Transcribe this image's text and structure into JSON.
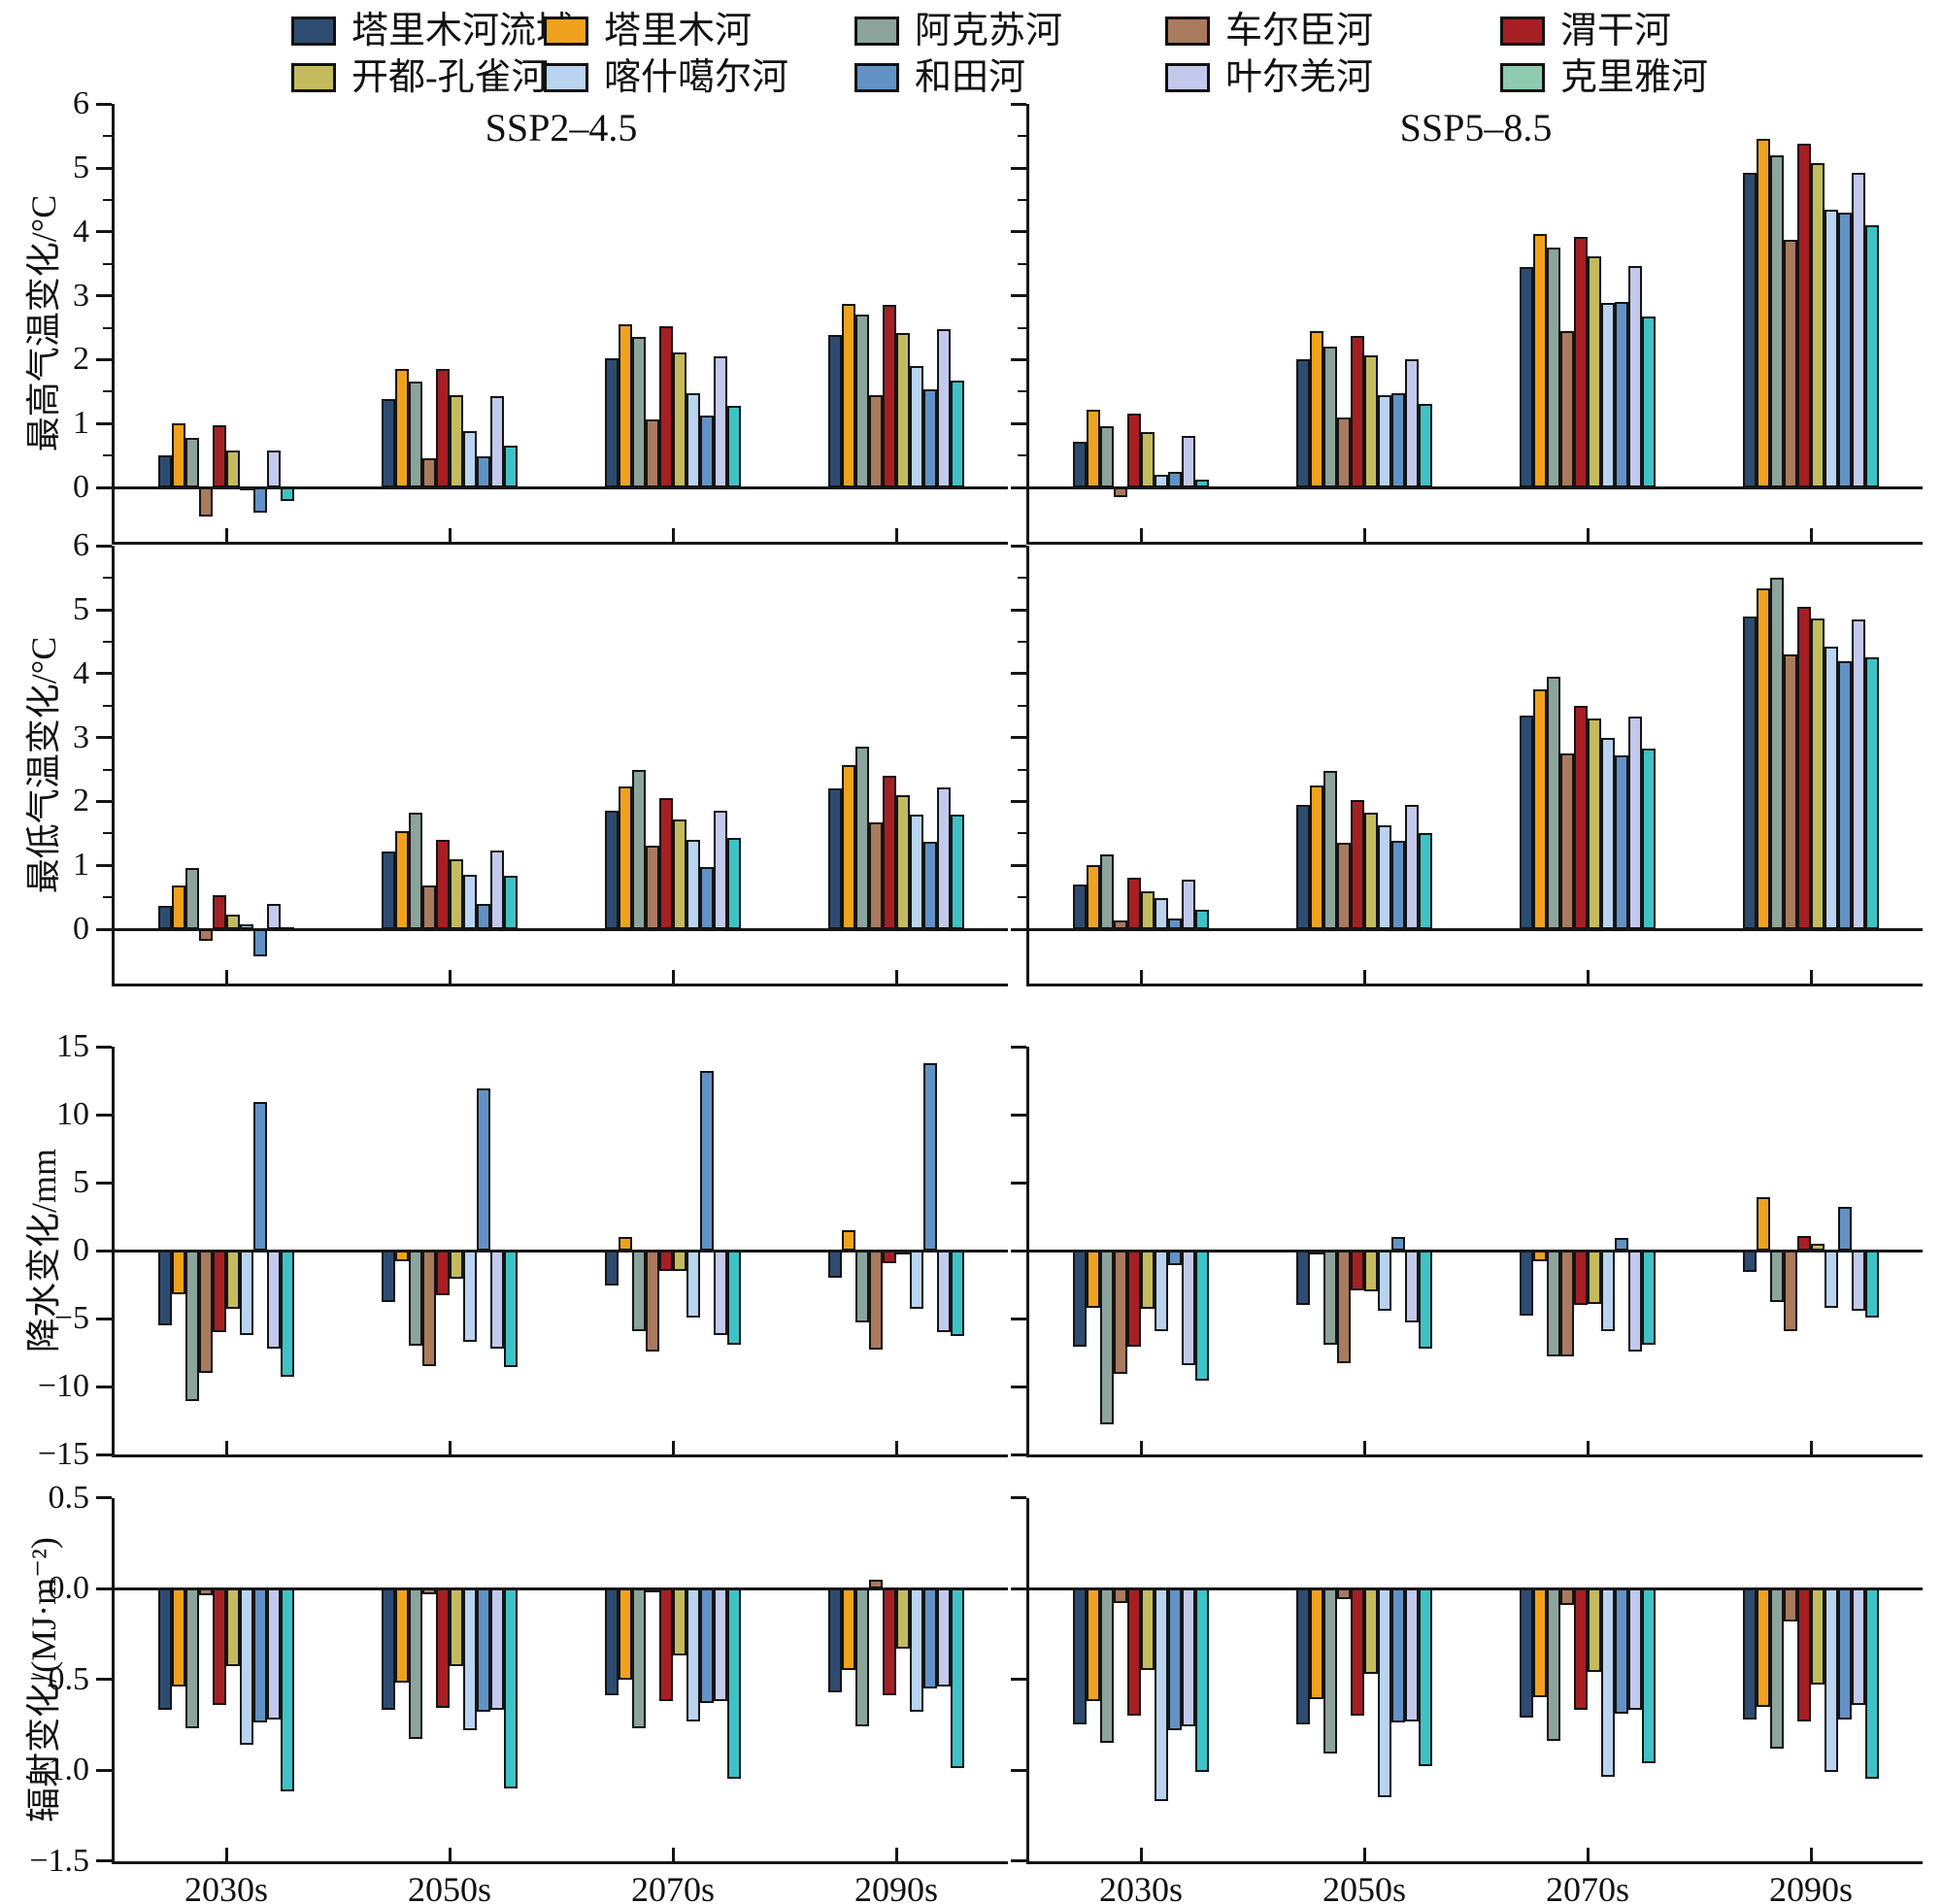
{
  "legend": {
    "items": [
      {
        "label": "塔里木河流域",
        "color": "#2e4c71"
      },
      {
        "label": "塔里木河",
        "color": "#f0a21e"
      },
      {
        "label": "阿克苏河",
        "color": "#8ca49b"
      },
      {
        "label": "车尔臣河",
        "color": "#a97a5e"
      },
      {
        "label": "渭干河",
        "color": "#a61f24"
      },
      {
        "label": "开都-孔雀河",
        "color": "#c4bb5f"
      },
      {
        "label": "喀什噶尔河",
        "color": "#b8d4f0"
      },
      {
        "label": "和田河",
        "color": "#6292c5"
      },
      {
        "label": "叶尔羌河",
        "color": "#c3c9ec"
      },
      {
        "label": "克里雅河",
        "color": "#3ec2c6",
        "legend_color": "#8fcbb1"
      }
    ]
  },
  "columns": [
    {
      "title": "SSP2–4.5"
    },
    {
      "title": "SSP5–8.5"
    }
  ],
  "categories": [
    "2030s",
    "2050s",
    "2070s",
    "2090s"
  ],
  "chart_data": [
    {
      "type": "bar",
      "ylabel": "最高气温变化/°C",
      "ylim": [
        -0.9,
        6
      ],
      "yticks": [
        [
          "6",
          6
        ],
        [
          "5",
          5
        ],
        [
          "4",
          4
        ],
        [
          "3",
          3
        ],
        [
          "2",
          2
        ],
        [
          "1",
          1
        ],
        [
          "0",
          0
        ]
      ],
      "minor_tick_values": [
        0.5,
        1.5,
        2.5,
        3.5,
        4.5,
        5.5
      ],
      "values": [
        [
          [
            0.5,
            1.38,
            2.02,
            2.38
          ],
          [
            1.0,
            1.85,
            2.55,
            2.87
          ],
          [
            0.78,
            1.65,
            2.35,
            2.7
          ],
          [
            -0.45,
            0.45,
            1.07,
            1.45
          ],
          [
            0.97,
            1.85,
            2.52,
            2.85
          ],
          [
            0.58,
            1.45,
            2.12,
            2.42
          ],
          [
            0.02,
            0.88,
            1.48,
            1.9
          ],
          [
            -0.4,
            0.48,
            1.13,
            1.53
          ],
          [
            0.57,
            1.43,
            2.05,
            2.47
          ],
          [
            -0.22,
            0.65,
            1.28,
            1.67
          ]
        ],
        [
          [
            0.72,
            2.0,
            3.45,
            4.92
          ],
          [
            1.22,
            2.45,
            3.97,
            5.45
          ],
          [
            0.95,
            2.2,
            3.75,
            5.2
          ],
          [
            -0.15,
            1.1,
            2.45,
            3.88
          ],
          [
            1.15,
            2.37,
            3.92,
            5.38
          ],
          [
            0.87,
            2.07,
            3.62,
            5.08
          ],
          [
            0.2,
            1.45,
            2.88,
            4.35
          ],
          [
            0.25,
            1.47,
            2.9,
            4.3
          ],
          [
            0.8,
            2.0,
            3.47,
            4.92
          ],
          [
            0.12,
            1.3,
            2.68,
            4.1
          ]
        ]
      ]
    },
    {
      "type": "bar",
      "ylabel": "最低气温变化/°C",
      "ylim": [
        -0.9,
        6
      ],
      "yticks": [
        [
          "6",
          6
        ],
        [
          "5",
          5
        ],
        [
          "4",
          4
        ],
        [
          "3",
          3
        ],
        [
          "2",
          2
        ],
        [
          "1",
          1
        ],
        [
          "0",
          0
        ]
      ],
      "minor_tick_values": [
        0.5,
        1.5,
        2.5,
        3.5,
        4.5,
        5.5
      ],
      "values": [
        [
          [
            0.37,
            1.22,
            1.85,
            2.2
          ],
          [
            0.68,
            1.53,
            2.23,
            2.57
          ],
          [
            0.95,
            1.82,
            2.5,
            2.86
          ],
          [
            -0.18,
            0.68,
            1.3,
            1.67
          ],
          [
            0.53,
            1.4,
            2.05,
            2.4
          ],
          [
            0.23,
            1.1,
            1.72,
            2.09
          ],
          [
            0.07,
            0.85,
            1.4,
            1.8
          ],
          [
            -0.42,
            0.4,
            0.98,
            1.37
          ],
          [
            0.4,
            1.23,
            1.85,
            2.22
          ],
          [
            0.03,
            0.83,
            1.43,
            1.8
          ]
        ],
        [
          [
            0.7,
            1.95,
            3.35,
            4.9
          ],
          [
            1.0,
            2.25,
            3.75,
            5.33
          ],
          [
            1.17,
            2.48,
            3.95,
            5.5
          ],
          [
            0.13,
            1.35,
            2.75,
            4.3
          ],
          [
            0.8,
            2.02,
            3.5,
            5.05
          ],
          [
            0.6,
            1.82,
            3.3,
            4.87
          ],
          [
            0.48,
            1.63,
            3.0,
            4.43
          ],
          [
            0.17,
            1.38,
            2.72,
            4.2
          ],
          [
            0.77,
            1.95,
            3.33,
            4.85
          ],
          [
            0.3,
            1.5,
            2.82,
            4.25
          ]
        ]
      ]
    },
    {
      "type": "bar",
      "ylabel": "降水变化/mm",
      "ylim": [
        -15,
        15
      ],
      "yticks": [
        [
          "15",
          15
        ],
        [
          "10",
          10
        ],
        [
          "5",
          5
        ],
        [
          "0",
          0
        ],
        [
          "−5",
          -5
        ],
        [
          "−10",
          -10
        ],
        [
          "−15",
          -15
        ]
      ],
      "minor_tick_values": [],
      "values": [
        [
          [
            -5.5,
            -3.8,
            -2.6,
            -2.0
          ],
          [
            -3.2,
            -0.8,
            1.0,
            1.5
          ],
          [
            -11.1,
            -7.0,
            -5.9,
            -5.3
          ],
          [
            -9.0,
            -8.5,
            -7.4,
            -7.3
          ],
          [
            -6.0,
            -3.3,
            -1.5,
            -0.9
          ],
          [
            -4.3,
            -2.1,
            -1.5,
            -0.2
          ],
          [
            -6.2,
            -6.7,
            -4.9,
            -4.3
          ],
          [
            10.9,
            11.9,
            13.2,
            13.8
          ],
          [
            -7.2,
            -7.2,
            -6.2,
            -6.0
          ],
          [
            -9.3,
            -8.6,
            -6.9,
            -6.3
          ]
        ],
        [
          [
            -7.1,
            -4.0,
            -4.8,
            -1.6
          ],
          [
            -4.2,
            -0.3,
            -0.8,
            3.9
          ],
          [
            -12.8,
            -6.9,
            -7.8,
            -3.8
          ],
          [
            -9.1,
            -8.3,
            -7.8,
            -5.9
          ],
          [
            -7.1,
            -2.9,
            -4.0,
            1.1
          ],
          [
            -4.3,
            -3.0,
            -3.9,
            0.5
          ],
          [
            -5.9,
            -4.4,
            -5.9,
            -4.2
          ],
          [
            -1.1,
            1.0,
            0.9,
            3.2
          ],
          [
            -8.4,
            -5.3,
            -7.4,
            -4.4
          ],
          [
            -9.6,
            -7.2,
            -6.9,
            -4.9
          ]
        ]
      ]
    },
    {
      "type": "bar",
      "ylabel": "辐射变化/(MJ·m⁻²)",
      "ylim": [
        -1.5,
        0.5
      ],
      "yticks": [
        [
          "0.5",
          0.5
        ],
        [
          "0.0",
          0
        ],
        [
          "−0.5",
          -0.5
        ],
        [
          "−1.0",
          -1.0
        ],
        [
          "−1.5",
          -1.5
        ]
      ],
      "minor_tick_values": [],
      "values": [
        [
          [
            -0.67,
            -0.67,
            -0.59,
            -0.57
          ],
          [
            -0.54,
            -0.52,
            -0.5,
            -0.45
          ],
          [
            -0.77,
            -0.83,
            -0.77,
            -0.76
          ],
          [
            -0.04,
            -0.03,
            -0.01,
            0.05
          ],
          [
            -0.64,
            -0.66,
            -0.62,
            -0.59
          ],
          [
            -0.43,
            -0.43,
            -0.37,
            -0.33
          ],
          [
            -0.86,
            -0.78,
            -0.73,
            -0.68
          ],
          [
            -0.74,
            -0.68,
            -0.63,
            -0.55
          ],
          [
            -0.72,
            -0.67,
            -0.62,
            -0.54
          ],
          [
            -1.12,
            -1.1,
            -1.05,
            -0.99
          ]
        ],
        [
          [
            -0.75,
            -0.75,
            -0.71,
            -0.72
          ],
          [
            -0.62,
            -0.61,
            -0.6,
            -0.65
          ],
          [
            -0.85,
            -0.91,
            -0.84,
            -0.88
          ],
          [
            -0.08,
            -0.06,
            -0.09,
            -0.18
          ],
          [
            -0.7,
            -0.7,
            -0.67,
            -0.73
          ],
          [
            -0.45,
            -0.47,
            -0.46,
            -0.53
          ],
          [
            -1.17,
            -1.15,
            -1.04,
            -1.01
          ],
          [
            -0.78,
            -0.74,
            -0.69,
            -0.72
          ],
          [
            -0.76,
            -0.73,
            -0.67,
            -0.64
          ],
          [
            -1.01,
            -0.98,
            -0.96,
            -1.05
          ]
        ]
      ]
    }
  ]
}
